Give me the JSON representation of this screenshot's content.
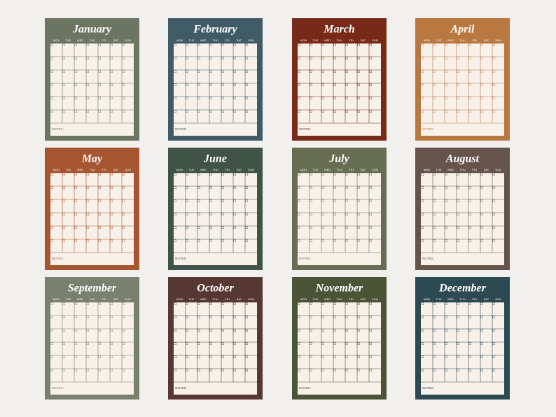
{
  "days": [
    "MON",
    "TUE",
    "WED",
    "THU",
    "FRI",
    "SAT",
    "SUN"
  ],
  "notes_label": "NOTES:",
  "months": [
    {
      "name": "January",
      "color": "#6b7561"
    },
    {
      "name": "February",
      "color": "#3f5b66"
    },
    {
      "name": "March",
      "color": "#762a17"
    },
    {
      "name": "April",
      "color": "#b9783f"
    },
    {
      "name": "May",
      "color": "#a55530"
    },
    {
      "name": "June",
      "color": "#3f5446"
    },
    {
      "name": "July",
      "color": "#666d52"
    },
    {
      "name": "August",
      "color": "#65544c"
    },
    {
      "name": "September",
      "color": "#7a806e"
    },
    {
      "name": "October",
      "color": "#573731"
    },
    {
      "name": "November",
      "color": "#4b5436"
    },
    {
      "name": "December",
      "color": "#2d4a52"
    }
  ]
}
